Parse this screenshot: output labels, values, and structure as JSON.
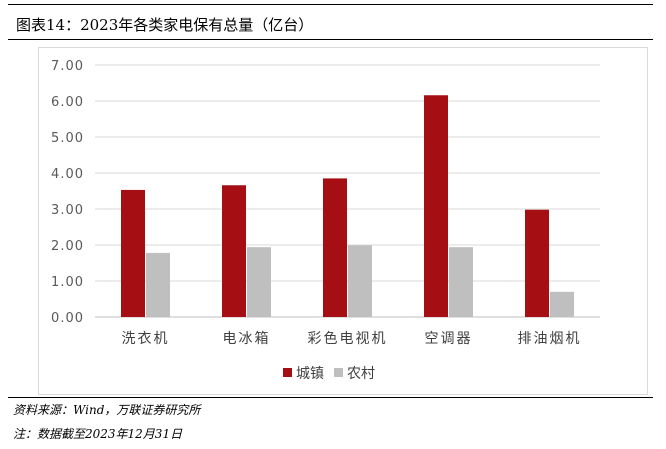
{
  "header": {
    "title": "图表14：2023年各类家电保有总量（亿台）"
  },
  "footer": {
    "source": "资料来源：Wind，万联证券研究所",
    "note": "注：数据截至2023年12月31日"
  },
  "colors": {
    "urban": "#a50f14",
    "rural": "#bfbfbf",
    "grid": "#d9d9d9",
    "axis": "#bfbfbf"
  },
  "chart_data": {
    "type": "bar",
    "categories": [
      "洗衣机",
      "电冰箱",
      "彩色电视机",
      "空调器",
      "排油烟机"
    ],
    "series": [
      {
        "name": "城镇",
        "values": [
          3.53,
          3.66,
          3.85,
          6.16,
          2.98
        ]
      },
      {
        "name": "农村",
        "values": [
          1.78,
          1.94,
          1.99,
          1.94,
          0.7
        ]
      }
    ],
    "ylim": [
      0,
      7
    ],
    "yticks": [
      "0.00",
      "1.00",
      "2.00",
      "3.00",
      "4.00",
      "5.00",
      "6.00",
      "7.00"
    ],
    "grid": true,
    "legend": "bottom"
  }
}
